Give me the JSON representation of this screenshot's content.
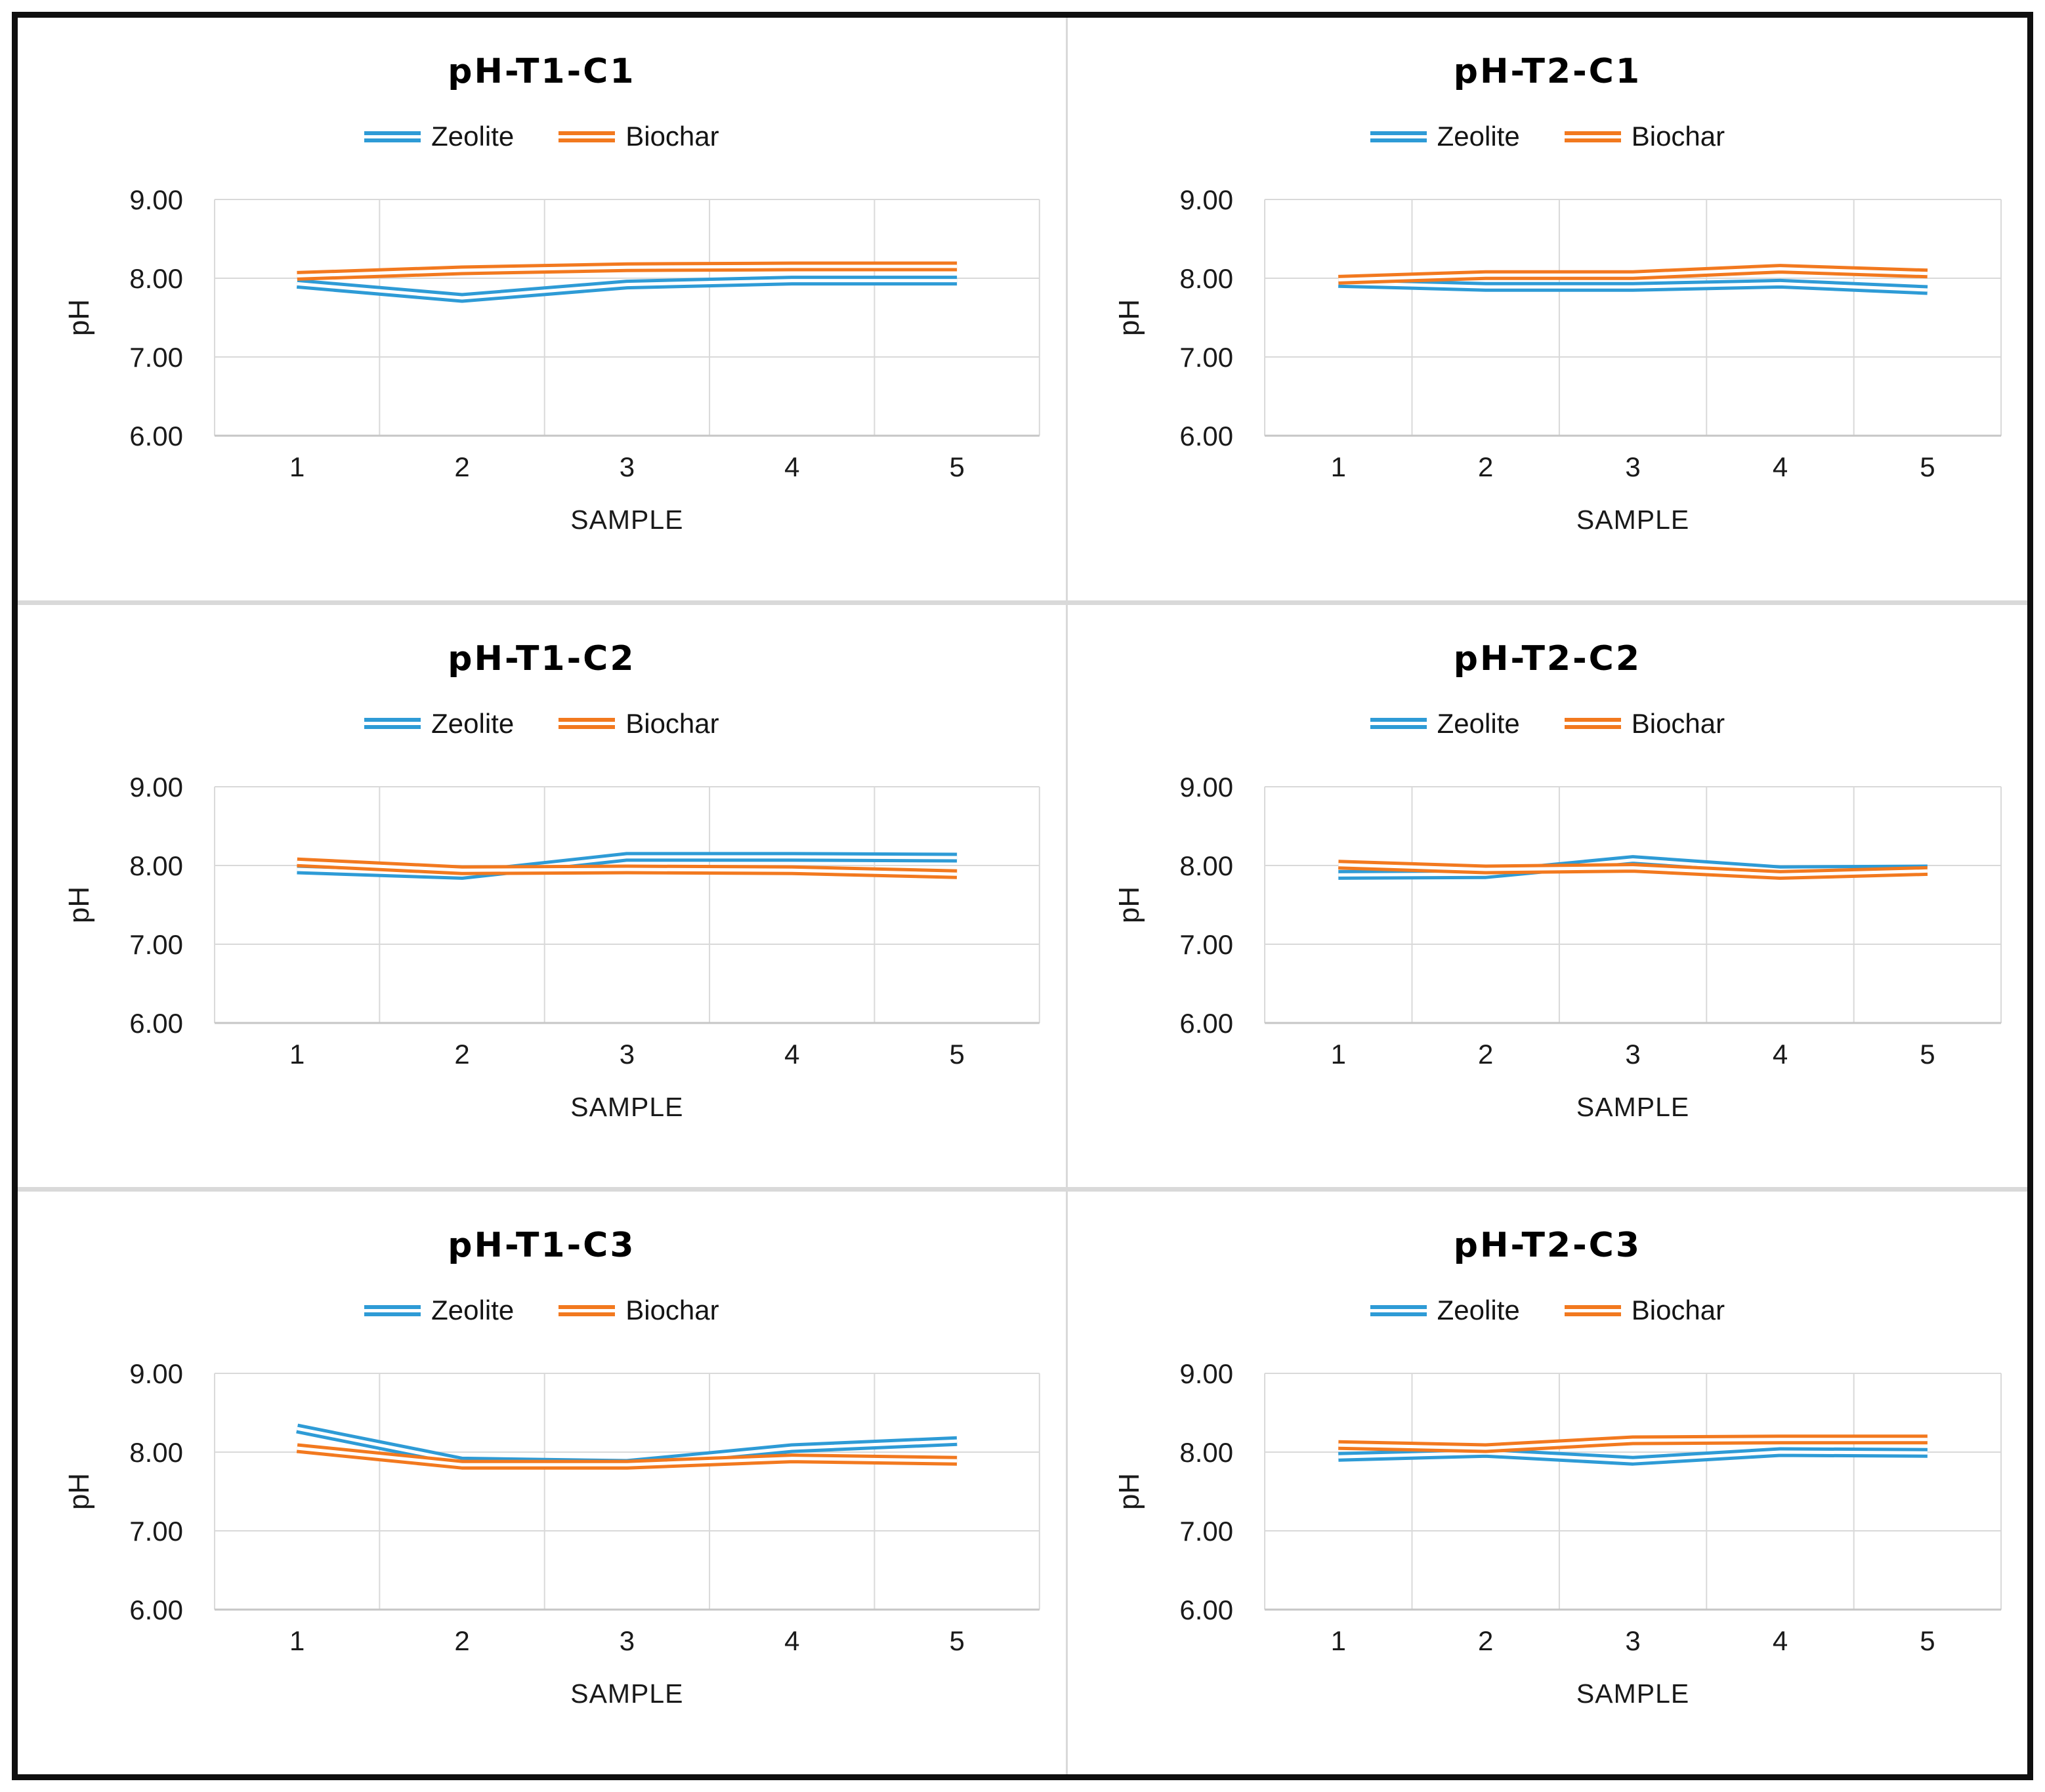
{
  "style": {
    "grid_color": "#d9d9d9",
    "axis_color": "#c6c6c6",
    "frame_border_color": "#0f0f0f",
    "divider_color": "#d9d9d9",
    "tick_text_color": "#1a1a1a",
    "line_core_color": "#ffffff",
    "zeolite_color": "#2e9bd6",
    "biochar_color": "#f2791f"
  },
  "chart_data": [
    {
      "type": "line",
      "title": "pH-T1-C1",
      "xlabel": "SAMPLE",
      "ylabel": "pH",
      "ylim": [
        6,
        9
      ],
      "yticks": [
        "9.00",
        "8.00",
        "7.00",
        "6.00"
      ],
      "xticks": [
        "1",
        "2",
        "3",
        "4",
        "5"
      ],
      "x": [
        1,
        2,
        3,
        4,
        5
      ],
      "grid": true,
      "legend_position": "top",
      "series": [
        {
          "name": "Zeolite",
          "color": "#2e9bd6",
          "values": [
            7.93,
            7.75,
            7.92,
            7.97,
            7.97
          ]
        },
        {
          "name": "Biochar",
          "color": "#f2791f",
          "values": [
            8.03,
            8.1,
            8.14,
            8.15,
            8.15
          ]
        }
      ]
    },
    {
      "type": "line",
      "title": "pH-T2-C1",
      "xlabel": "SAMPLE",
      "ylabel": "pH",
      "ylim": [
        6,
        9
      ],
      "yticks": [
        "9.00",
        "8.00",
        "7.00",
        "6.00"
      ],
      "xticks": [
        "1",
        "2",
        "3",
        "4",
        "5"
      ],
      "x": [
        1,
        2,
        3,
        4,
        5
      ],
      "grid": true,
      "legend_position": "top",
      "series": [
        {
          "name": "Zeolite",
          "color": "#2e9bd6",
          "values": [
            7.94,
            7.89,
            7.89,
            7.93,
            7.85
          ]
        },
        {
          "name": "Biochar",
          "color": "#f2791f",
          "values": [
            7.98,
            8.04,
            8.04,
            8.12,
            8.06
          ]
        }
      ]
    },
    {
      "type": "line",
      "title": "pH-T1-C2",
      "xlabel": "SAMPLE",
      "ylabel": "pH",
      "ylim": [
        6,
        9
      ],
      "yticks": [
        "9.00",
        "8.00",
        "7.00",
        "6.00"
      ],
      "xticks": [
        "1",
        "2",
        "3",
        "4",
        "5"
      ],
      "x": [
        1,
        2,
        3,
        4,
        5
      ],
      "grid": true,
      "legend_position": "top",
      "series": [
        {
          "name": "Zeolite",
          "color": "#2e9bd6",
          "values": [
            7.95,
            7.88,
            8.11,
            8.11,
            8.1
          ]
        },
        {
          "name": "Biochar",
          "color": "#f2791f",
          "values": [
            8.04,
            7.94,
            7.95,
            7.94,
            7.89
          ]
        }
      ]
    },
    {
      "type": "line",
      "title": "pH-T2-C2",
      "xlabel": "SAMPLE",
      "ylabel": "pH",
      "ylim": [
        6,
        9
      ],
      "yticks": [
        "9.00",
        "8.00",
        "7.00",
        "6.00"
      ],
      "xticks": [
        "1",
        "2",
        "3",
        "4",
        "5"
      ],
      "x": [
        1,
        2,
        3,
        4,
        5
      ],
      "grid": true,
      "legend_position": "top",
      "series": [
        {
          "name": "Zeolite",
          "color": "#2e9bd6",
          "values": [
            7.88,
            7.89,
            8.07,
            7.94,
            7.95
          ]
        },
        {
          "name": "Biochar",
          "color": "#f2791f",
          "values": [
            8.01,
            7.95,
            7.97,
            7.88,
            7.93
          ]
        }
      ]
    },
    {
      "type": "line",
      "title": "pH-T1-C3",
      "xlabel": "SAMPLE",
      "ylabel": "pH",
      "ylim": [
        6,
        9
      ],
      "yticks": [
        "9.00",
        "8.00",
        "7.00",
        "6.00"
      ],
      "xticks": [
        "1",
        "2",
        "3",
        "4",
        "5"
      ],
      "x": [
        1,
        2,
        3,
        4,
        5
      ],
      "grid": true,
      "legend_position": "top",
      "series": [
        {
          "name": "Zeolite",
          "color": "#2e9bd6",
          "values": [
            8.3,
            7.88,
            7.85,
            8.05,
            8.14
          ]
        },
        {
          "name": "Biochar",
          "color": "#f2791f",
          "values": [
            8.05,
            7.84,
            7.84,
            7.92,
            7.89
          ]
        }
      ]
    },
    {
      "type": "line",
      "title": "pH-T2-C3",
      "xlabel": "SAMPLE",
      "ylabel": "pH",
      "ylim": [
        6,
        9
      ],
      "yticks": [
        "9.00",
        "8.00",
        "7.00",
        "6.00"
      ],
      "xticks": [
        "1",
        "2",
        "3",
        "4",
        "5"
      ],
      "x": [
        1,
        2,
        3,
        4,
        5
      ],
      "grid": true,
      "legend_position": "top",
      "series": [
        {
          "name": "Zeolite",
          "color": "#2e9bd6",
          "values": [
            7.94,
            7.99,
            7.89,
            8.0,
            7.99
          ]
        },
        {
          "name": "Biochar",
          "color": "#f2791f",
          "values": [
            8.09,
            8.05,
            8.15,
            8.16,
            8.16
          ]
        }
      ]
    }
  ]
}
